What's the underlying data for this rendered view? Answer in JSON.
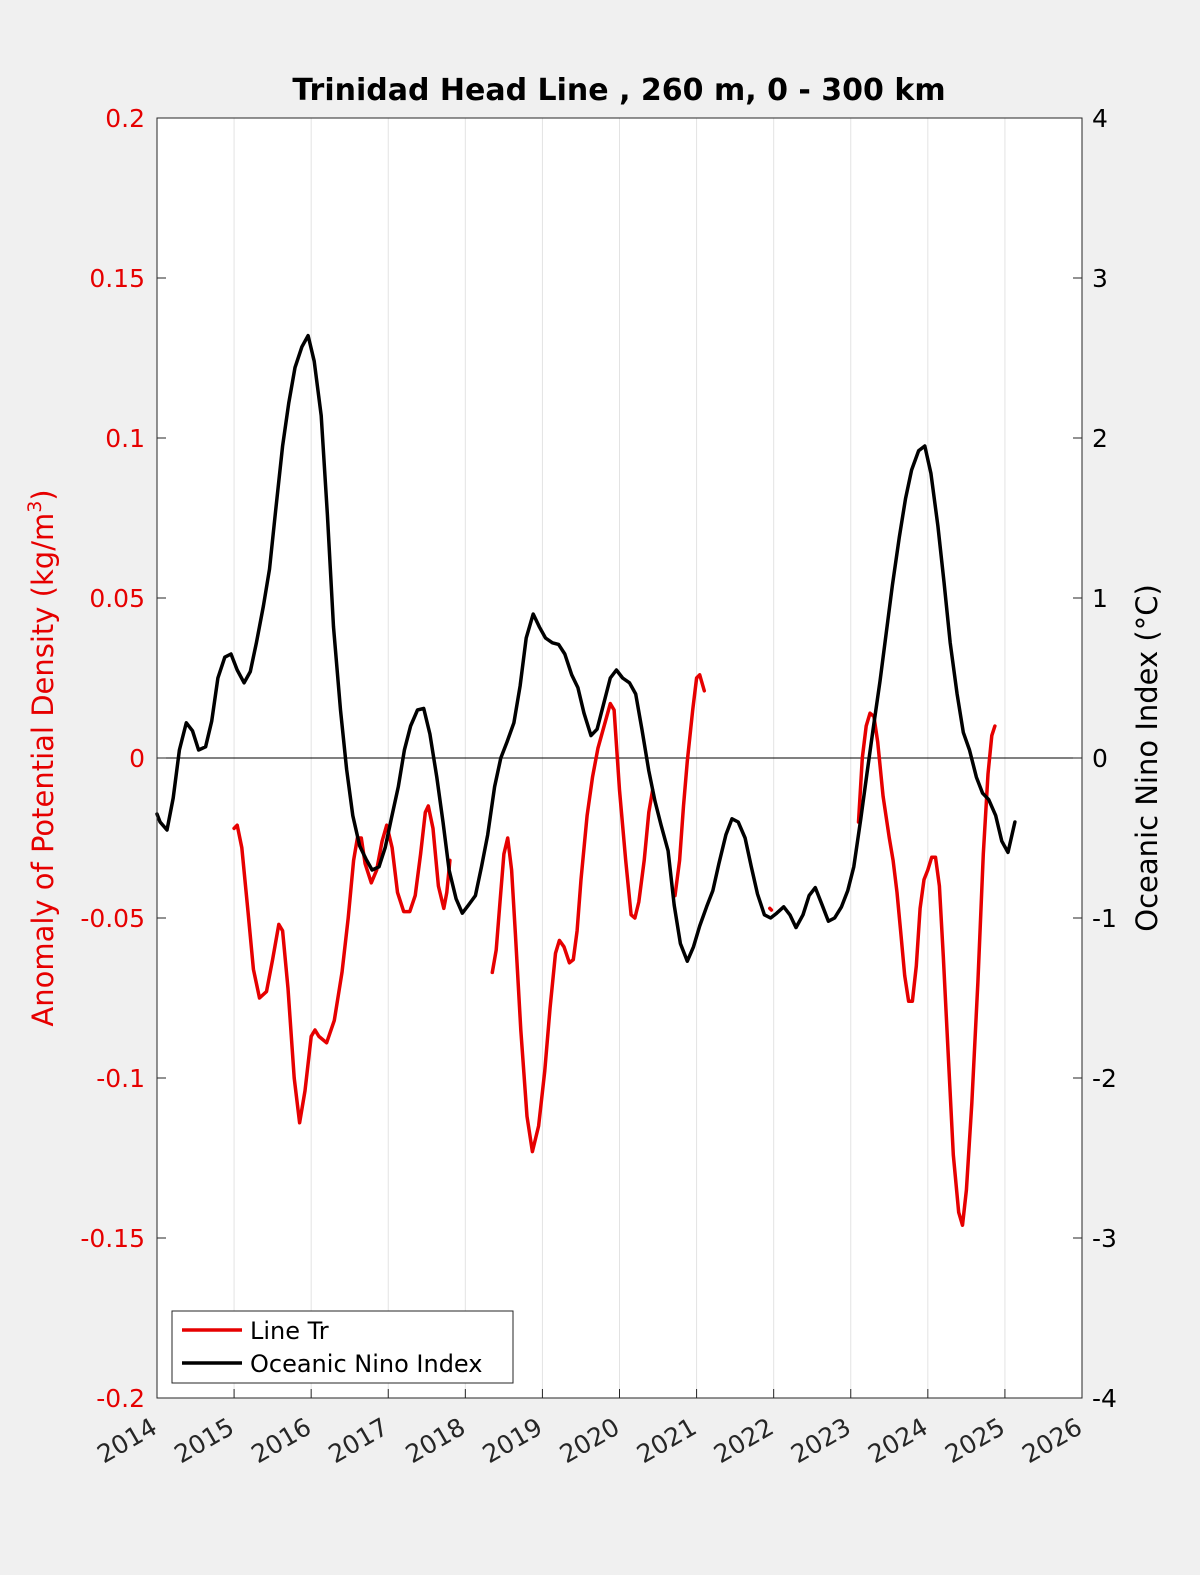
{
  "chart_data": {
    "type": "line",
    "title": "Trinidad Head Line , 260 m, 0 - 300 km",
    "xlabel": "",
    "ylabel_left": "Anomaly of Potential Density (kg/m",
    "ylabel_left_sup": "3",
    "ylabel_left_close": ")",
    "ylabel_right": "Oceanic Nino Index (°C)",
    "xlim": [
      2014,
      2026
    ],
    "ylim_left": [
      -0.2,
      0.2
    ],
    "ylim_right": [
      -4,
      4
    ],
    "x_ticks": [
      "2014",
      "2015",
      "2016",
      "2017",
      "2018",
      "2019",
      "2020",
      "2021",
      "2022",
      "2023",
      "2024",
      "2025",
      "2026"
    ],
    "y_left_ticks": [
      "0.2",
      "0.15",
      "0.1",
      "0.05",
      "0",
      "-0.05",
      "-0.1",
      "-0.15",
      "-0.2"
    ],
    "y_right_ticks": [
      "4",
      "3",
      "2",
      "1",
      "0",
      "-1",
      "-2",
      "-3",
      "-4"
    ],
    "grid": "vertical",
    "legend_position": "bottom-left",
    "colors": {
      "line_tr": "#e60000",
      "oni": "#000000",
      "left_axis": "#e60000",
      "right_axis": "#000000"
    },
    "series": [
      {
        "name": "Line Tr",
        "axis": "left",
        "segments": [
          [
            [
              2015.0,
              -0.022
            ],
            [
              2015.04,
              -0.021
            ],
            [
              2015.1,
              -0.028
            ],
            [
              2015.18,
              -0.048
            ],
            [
              2015.25,
              -0.066
            ],
            [
              2015.33,
              -0.075
            ],
            [
              2015.42,
              -0.073
            ],
            [
              2015.5,
              -0.063
            ],
            [
              2015.58,
              -0.052
            ],
            [
              2015.63,
              -0.054
            ],
            [
              2015.7,
              -0.072
            ],
            [
              2015.78,
              -0.1
            ],
            [
              2015.85,
              -0.114
            ],
            [
              2015.92,
              -0.104
            ],
            [
              2016.0,
              -0.087
            ],
            [
              2016.05,
              -0.085
            ],
            [
              2016.1,
              -0.087
            ],
            [
              2016.2,
              -0.089
            ],
            [
              2016.3,
              -0.082
            ],
            [
              2016.4,
              -0.067
            ],
            [
              2016.48,
              -0.05
            ],
            [
              2016.55,
              -0.032
            ],
            [
              2016.6,
              -0.025
            ],
            [
              2016.65,
              -0.025
            ],
            [
              2016.7,
              -0.033
            ],
            [
              2016.78,
              -0.039
            ],
            [
              2016.85,
              -0.035
            ],
            [
              2016.92,
              -0.026
            ],
            [
              2016.98,
              -0.021
            ],
            [
              2017.05,
              -0.028
            ],
            [
              2017.12,
              -0.042
            ],
            [
              2017.2,
              -0.048
            ],
            [
              2017.28,
              -0.048
            ],
            [
              2017.35,
              -0.043
            ],
            [
              2017.42,
              -0.03
            ],
            [
              2017.48,
              -0.017
            ],
            [
              2017.52,
              -0.015
            ],
            [
              2017.58,
              -0.022
            ],
            [
              2017.65,
              -0.04
            ],
            [
              2017.72,
              -0.047
            ],
            [
              2017.76,
              -0.042
            ],
            [
              2017.8,
              -0.032
            ]
          ],
          [
            [
              2018.35,
              -0.067
            ],
            [
              2018.4,
              -0.06
            ],
            [
              2018.45,
              -0.045
            ],
            [
              2018.5,
              -0.03
            ],
            [
              2018.55,
              -0.025
            ],
            [
              2018.6,
              -0.035
            ],
            [
              2018.65,
              -0.055
            ],
            [
              2018.72,
              -0.085
            ],
            [
              2018.8,
              -0.112
            ],
            [
              2018.87,
              -0.123
            ],
            [
              2018.95,
              -0.115
            ],
            [
              2019.03,
              -0.098
            ],
            [
              2019.1,
              -0.078
            ],
            [
              2019.17,
              -0.061
            ],
            [
              2019.22,
              -0.057
            ],
            [
              2019.28,
              -0.059
            ],
            [
              2019.35,
              -0.064
            ],
            [
              2019.4,
              -0.063
            ],
            [
              2019.45,
              -0.054
            ],
            [
              2019.5,
              -0.038
            ],
            [
              2019.58,
              -0.018
            ],
            [
              2019.65,
              -0.006
            ],
            [
              2019.72,
              0.003
            ],
            [
              2019.8,
              0.01
            ],
            [
              2019.88,
              0.017
            ],
            [
              2019.93,
              0.015
            ],
            [
              2020.0,
              -0.01
            ],
            [
              2020.08,
              -0.032
            ],
            [
              2020.15,
              -0.049
            ],
            [
              2020.2,
              -0.05
            ],
            [
              2020.25,
              -0.045
            ],
            [
              2020.32,
              -0.032
            ],
            [
              2020.38,
              -0.017
            ],
            [
              2020.43,
              -0.01
            ]
          ],
          [
            [
              2020.72,
              -0.043
            ],
            [
              2020.78,
              -0.032
            ],
            [
              2020.83,
              -0.015
            ],
            [
              2020.88,
              -0.001
            ],
            [
              2020.95,
              0.015
            ],
            [
              2021.0,
              0.025
            ],
            [
              2021.04,
              0.026
            ],
            [
              2021.1,
              0.021
            ]
          ],
          [
            [
              2021.95,
              -0.047
            ],
            [
              2021.97,
              -0.0475
            ]
          ],
          [
            [
              2023.1,
              -0.02
            ],
            [
              2023.15,
              0.0
            ],
            [
              2023.2,
              0.01
            ],
            [
              2023.25,
              0.014
            ],
            [
              2023.3,
              0.013
            ],
            [
              2023.35,
              0.005
            ],
            [
              2023.42,
              -0.012
            ],
            [
              2023.5,
              -0.025
            ],
            [
              2023.55,
              -0.032
            ],
            [
              2023.6,
              -0.042
            ],
            [
              2023.65,
              -0.055
            ],
            [
              2023.7,
              -0.068
            ],
            [
              2023.75,
              -0.076
            ],
            [
              2023.8,
              -0.076
            ],
            [
              2023.85,
              -0.065
            ],
            [
              2023.9,
              -0.047
            ],
            [
              2023.95,
              -0.038
            ],
            [
              2024.0,
              -0.035
            ],
            [
              2024.05,
              -0.031
            ],
            [
              2024.1,
              -0.031
            ],
            [
              2024.15,
              -0.04
            ],
            [
              2024.2,
              -0.062
            ],
            [
              2024.27,
              -0.095
            ],
            [
              2024.33,
              -0.124
            ],
            [
              2024.4,
              -0.142
            ],
            [
              2024.45,
              -0.146
            ],
            [
              2024.5,
              -0.135
            ],
            [
              2024.57,
              -0.108
            ],
            [
              2024.65,
              -0.07
            ],
            [
              2024.72,
              -0.03
            ],
            [
              2024.78,
              -0.005
            ],
            [
              2024.83,
              0.007
            ],
            [
              2024.87,
              0.01
            ]
          ]
        ]
      },
      {
        "name": "Oceanic Nino Index",
        "axis": "right",
        "segments": [
          [
            [
              2014.0,
              -0.35
            ],
            [
              2014.04,
              -0.4
            ],
            [
              2014.13,
              -0.45
            ],
            [
              2014.21,
              -0.25
            ],
            [
              2014.29,
              0.05
            ],
            [
              2014.38,
              0.22
            ],
            [
              2014.46,
              0.17
            ],
            [
              2014.54,
              0.05
            ],
            [
              2014.63,
              0.07
            ],
            [
              2014.71,
              0.23
            ],
            [
              2014.79,
              0.5
            ],
            [
              2014.88,
              0.63
            ],
            [
              2014.96,
              0.65
            ],
            [
              2015.04,
              0.55
            ],
            [
              2015.13,
              0.47
            ],
            [
              2015.21,
              0.54
            ],
            [
              2015.29,
              0.72
            ],
            [
              2015.38,
              0.95
            ],
            [
              2015.46,
              1.18
            ],
            [
              2015.54,
              1.55
            ],
            [
              2015.63,
              1.95
            ],
            [
              2015.71,
              2.22
            ],
            [
              2015.79,
              2.44
            ],
            [
              2015.88,
              2.57
            ],
            [
              2015.96,
              2.64
            ],
            [
              2016.04,
              2.48
            ],
            [
              2016.13,
              2.14
            ],
            [
              2016.21,
              1.52
            ],
            [
              2016.29,
              0.82
            ],
            [
              2016.38,
              0.3
            ],
            [
              2016.46,
              -0.07
            ],
            [
              2016.54,
              -0.36
            ],
            [
              2016.63,
              -0.55
            ],
            [
              2016.71,
              -0.63
            ],
            [
              2016.79,
              -0.7
            ],
            [
              2016.88,
              -0.68
            ],
            [
              2016.96,
              -0.56
            ],
            [
              2017.04,
              -0.38
            ],
            [
              2017.13,
              -0.18
            ],
            [
              2017.21,
              0.05
            ],
            [
              2017.29,
              0.2
            ],
            [
              2017.38,
              0.3
            ],
            [
              2017.46,
              0.31
            ],
            [
              2017.54,
              0.15
            ],
            [
              2017.63,
              -0.12
            ],
            [
              2017.71,
              -0.4
            ],
            [
              2017.79,
              -0.7
            ],
            [
              2017.88,
              -0.88
            ],
            [
              2017.96,
              -0.97
            ],
            [
              2018.04,
              -0.92
            ],
            [
              2018.13,
              -0.86
            ],
            [
              2018.21,
              -0.68
            ],
            [
              2018.29,
              -0.48
            ],
            [
              2018.38,
              -0.18
            ],
            [
              2018.46,
              0.0
            ],
            [
              2018.54,
              0.1
            ],
            [
              2018.63,
              0.22
            ],
            [
              2018.71,
              0.45
            ],
            [
              2018.79,
              0.75
            ],
            [
              2018.88,
              0.9
            ],
            [
              2018.96,
              0.82
            ],
            [
              2019.04,
              0.75
            ],
            [
              2019.13,
              0.72
            ],
            [
              2019.21,
              0.71
            ],
            [
              2019.29,
              0.65
            ],
            [
              2019.38,
              0.52
            ],
            [
              2019.46,
              0.44
            ],
            [
              2019.54,
              0.28
            ],
            [
              2019.63,
              0.14
            ],
            [
              2019.71,
              0.18
            ],
            [
              2019.79,
              0.33
            ],
            [
              2019.88,
              0.5
            ],
            [
              2019.96,
              0.55
            ],
            [
              2020.04,
              0.5
            ],
            [
              2020.13,
              0.47
            ],
            [
              2020.21,
              0.4
            ],
            [
              2020.29,
              0.18
            ],
            [
              2020.38,
              -0.08
            ],
            [
              2020.46,
              -0.27
            ],
            [
              2020.54,
              -0.42
            ],
            [
              2020.63,
              -0.58
            ],
            [
              2020.71,
              -0.92
            ],
            [
              2020.79,
              -1.16
            ],
            [
              2020.88,
              -1.27
            ],
            [
              2020.96,
              -1.18
            ],
            [
              2021.04,
              -1.05
            ],
            [
              2021.13,
              -0.93
            ],
            [
              2021.21,
              -0.83
            ],
            [
              2021.29,
              -0.66
            ],
            [
              2021.38,
              -0.48
            ],
            [
              2021.46,
              -0.38
            ],
            [
              2021.54,
              -0.4
            ],
            [
              2021.63,
              -0.5
            ],
            [
              2021.71,
              -0.68
            ],
            [
              2021.79,
              -0.85
            ],
            [
              2021.88,
              -0.98
            ],
            [
              2021.96,
              -1.0
            ],
            [
              2022.04,
              -0.97
            ],
            [
              2022.13,
              -0.93
            ],
            [
              2022.21,
              -0.98
            ],
            [
              2022.29,
              -1.06
            ],
            [
              2022.38,
              -0.98
            ],
            [
              2022.46,
              -0.86
            ],
            [
              2022.54,
              -0.81
            ],
            [
              2022.63,
              -0.92
            ],
            [
              2022.71,
              -1.02
            ],
            [
              2022.79,
              -1.0
            ],
            [
              2022.88,
              -0.93
            ],
            [
              2022.96,
              -0.83
            ],
            [
              2023.04,
              -0.68
            ],
            [
              2023.13,
              -0.38
            ],
            [
              2023.21,
              -0.1
            ],
            [
              2023.29,
              0.18
            ],
            [
              2023.38,
              0.48
            ],
            [
              2023.46,
              0.78
            ],
            [
              2023.54,
              1.08
            ],
            [
              2023.63,
              1.38
            ],
            [
              2023.71,
              1.62
            ],
            [
              2023.79,
              1.8
            ],
            [
              2023.88,
              1.92
            ],
            [
              2023.96,
              1.95
            ],
            [
              2024.04,
              1.78
            ],
            [
              2024.13,
              1.45
            ],
            [
              2024.21,
              1.1
            ],
            [
              2024.29,
              0.72
            ],
            [
              2024.38,
              0.4
            ],
            [
              2024.46,
              0.16
            ],
            [
              2024.54,
              0.05
            ],
            [
              2024.63,
              -0.12
            ],
            [
              2024.71,
              -0.22
            ],
            [
              2024.79,
              -0.26
            ],
            [
              2024.88,
              -0.36
            ],
            [
              2024.96,
              -0.52
            ],
            [
              2025.04,
              -0.59
            ],
            [
              2025.13,
              -0.4
            ]
          ]
        ]
      }
    ]
  }
}
